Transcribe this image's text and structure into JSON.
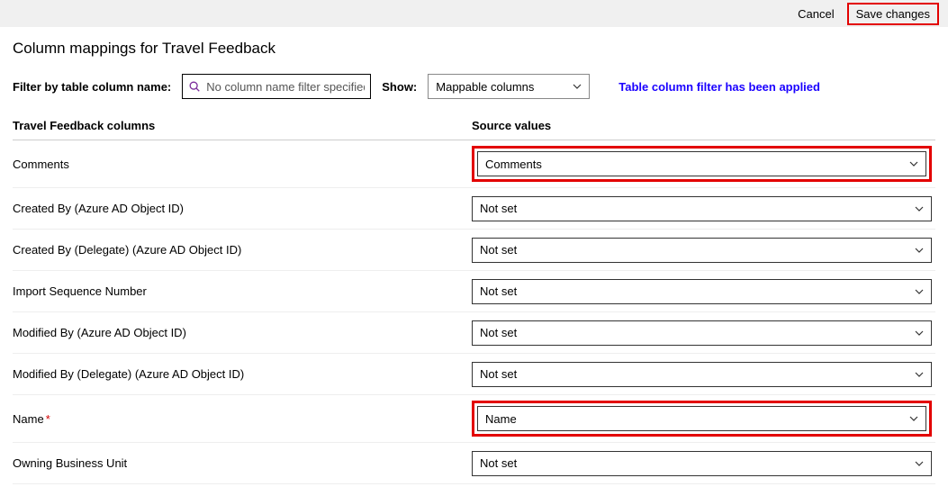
{
  "topbar": {
    "cancel_label": "Cancel",
    "save_label": "Save changes"
  },
  "page": {
    "title": "Column mappings for Travel Feedback"
  },
  "filter": {
    "label": "Filter by table column name:",
    "placeholder": "No column name filter specified",
    "show_label": "Show:",
    "show_value": "Mappable columns",
    "applied_text": "Table column filter has been applied"
  },
  "headers": {
    "left": "Travel Feedback columns",
    "right": "Source values"
  },
  "rows": [
    {
      "label": "Comments",
      "required": false,
      "value": "Comments",
      "highlighted": true
    },
    {
      "label": "Created By (Azure AD Object ID)",
      "required": false,
      "value": "Not set",
      "highlighted": false
    },
    {
      "label": "Created By (Delegate) (Azure AD Object ID)",
      "required": false,
      "value": "Not set",
      "highlighted": false
    },
    {
      "label": "Import Sequence Number",
      "required": false,
      "value": "Not set",
      "highlighted": false
    },
    {
      "label": "Modified By (Azure AD Object ID)",
      "required": false,
      "value": "Not set",
      "highlighted": false
    },
    {
      "label": "Modified By (Delegate) (Azure AD Object ID)",
      "required": false,
      "value": "Not set",
      "highlighted": false
    },
    {
      "label": "Name",
      "required": true,
      "value": "Name",
      "highlighted": true
    },
    {
      "label": "Owning Business Unit",
      "required": false,
      "value": "Not set",
      "highlighted": false
    }
  ],
  "colors": {
    "highlight_border": "#e30000",
    "link_blue": "#1a00ff",
    "topbar_bg": "#f0f0f0"
  }
}
